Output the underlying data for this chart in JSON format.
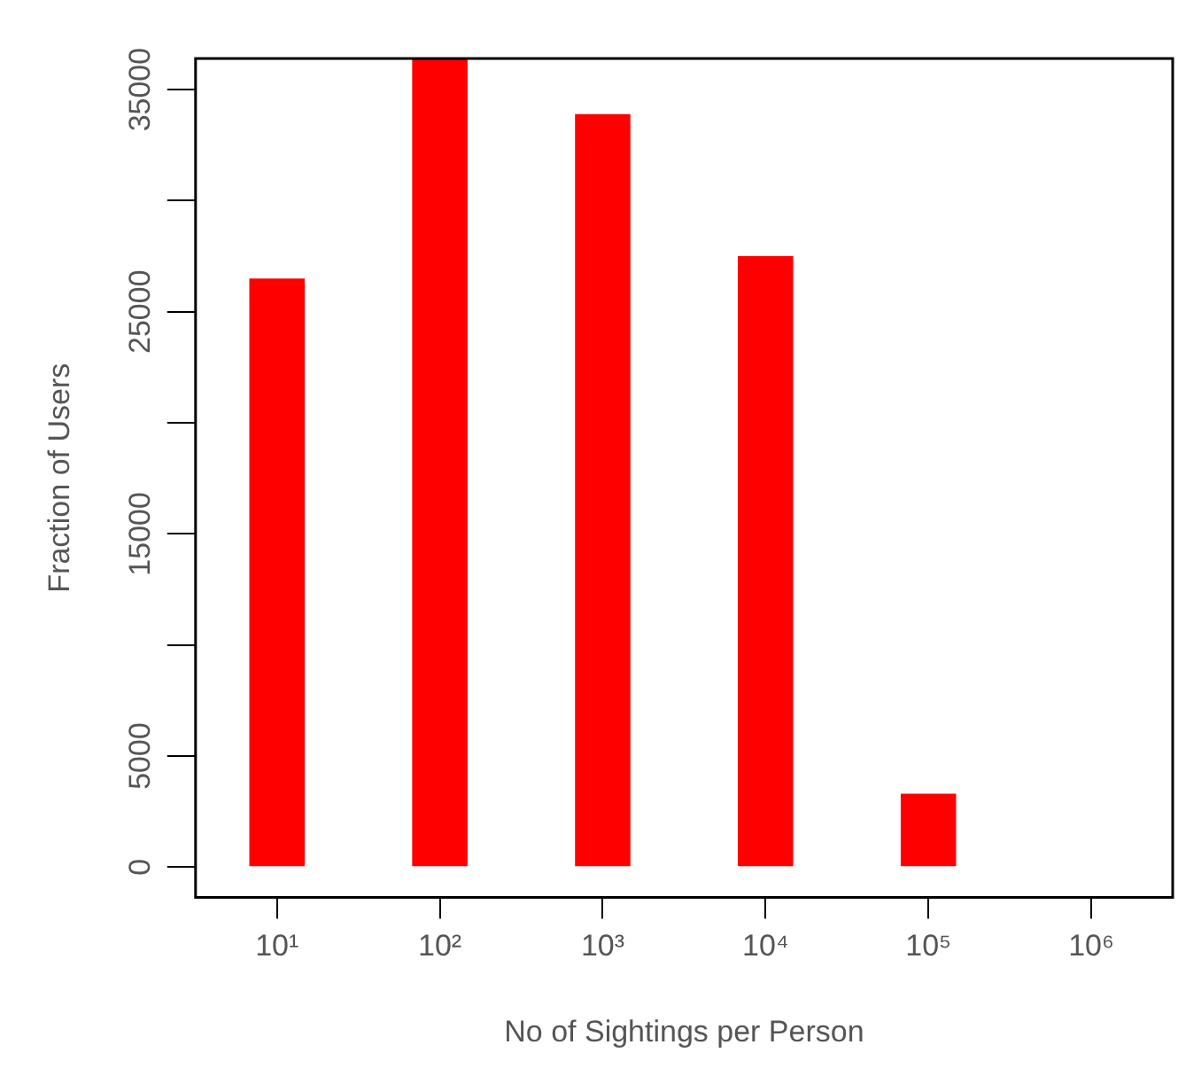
{
  "chart_data": {
    "type": "bar",
    "xlabel": "No of Sightings per Person",
    "ylabel": "Fraction of Users",
    "categories": [
      "10¹",
      "10²",
      "10³",
      "10⁴",
      "10⁵",
      "10⁶"
    ],
    "values": [
      26500,
      36400,
      33900,
      27500,
      3300,
      null
    ],
    "color": "#ff0000",
    "ylim": [
      -1360,
      36400
    ],
    "yticks": [
      0,
      5000,
      {
        "value": 10000,
        "label": null
      },
      15000,
      {
        "value": 20000,
        "label": null
      },
      25000,
      {
        "value": 30000,
        "label": null
      },
      35000
    ],
    "grid": false,
    "legend": false
  }
}
